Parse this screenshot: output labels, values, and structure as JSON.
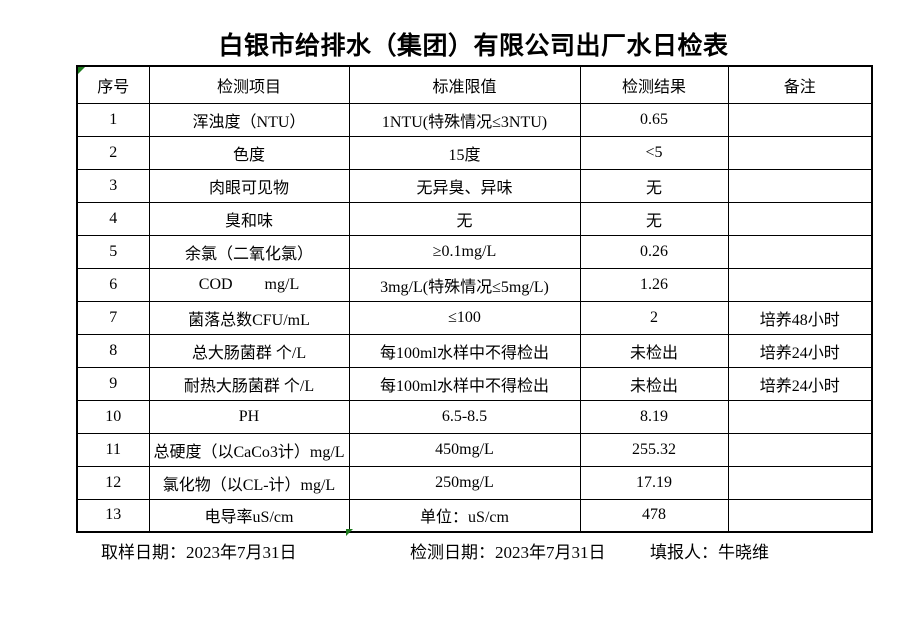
{
  "title": "白银市给排水（集团）有限公司出厂水日检表",
  "table": {
    "headers": [
      "序号",
      "检测项目",
      "标准限值",
      "检测结果",
      "备注"
    ],
    "rows": [
      [
        "1",
        "浑浊度（NTU）",
        "1NTU(特殊情况≤3NTU)",
        "0.65",
        ""
      ],
      [
        "2",
        "色度",
        "15度",
        "<5",
        ""
      ],
      [
        "3",
        "肉眼可见物",
        "无异臭、异味",
        "无",
        ""
      ],
      [
        "4",
        "臭和味",
        "无",
        "无",
        ""
      ],
      [
        "5",
        "余氯（二氧化氯）",
        "≥0.1mg/L",
        "0.26",
        ""
      ],
      [
        "6",
        "COD        mg/L",
        "3mg/L(特殊情况≤5mg/L)",
        "1.26",
        ""
      ],
      [
        "7",
        "菌落总数CFU/mL",
        "≤100",
        "2",
        "培养48小时"
      ],
      [
        "8",
        "总大肠菌群 个/L",
        "每100ml水样中不得检出",
        "未检出",
        "培养24小时"
      ],
      [
        "9",
        "耐热大肠菌群 个/L",
        "每100ml水样中不得检出",
        "未检出",
        "培养24小时"
      ],
      [
        "10",
        "PH",
        "6.5-8.5",
        "8.19",
        ""
      ],
      [
        "11",
        "总硬度（以CaCo3计）mg/L",
        "450mg/L",
        "255.32",
        ""
      ],
      [
        "12",
        "氯化物（以CL-计）mg/L",
        "250mg/L",
        "17.19",
        ""
      ],
      [
        "13",
        "电导率uS/cm",
        "单位：uS/cm",
        "478",
        ""
      ]
    ]
  },
  "footer": {
    "sampling": {
      "label": "取样日期：",
      "value": "2023年7月31日"
    },
    "testing": {
      "label": "检测日期：",
      "value": "2023年7月31日"
    },
    "reporter": {
      "label": "填报人：",
      "value": "牛晓维"
    }
  },
  "icons": {
    "error_triangle": "excel-error-triangle-icon"
  },
  "colors": {
    "background": "#ffffff",
    "border": "#000000",
    "text": "#000000",
    "error_triangle_green": "#1e7b1e"
  }
}
